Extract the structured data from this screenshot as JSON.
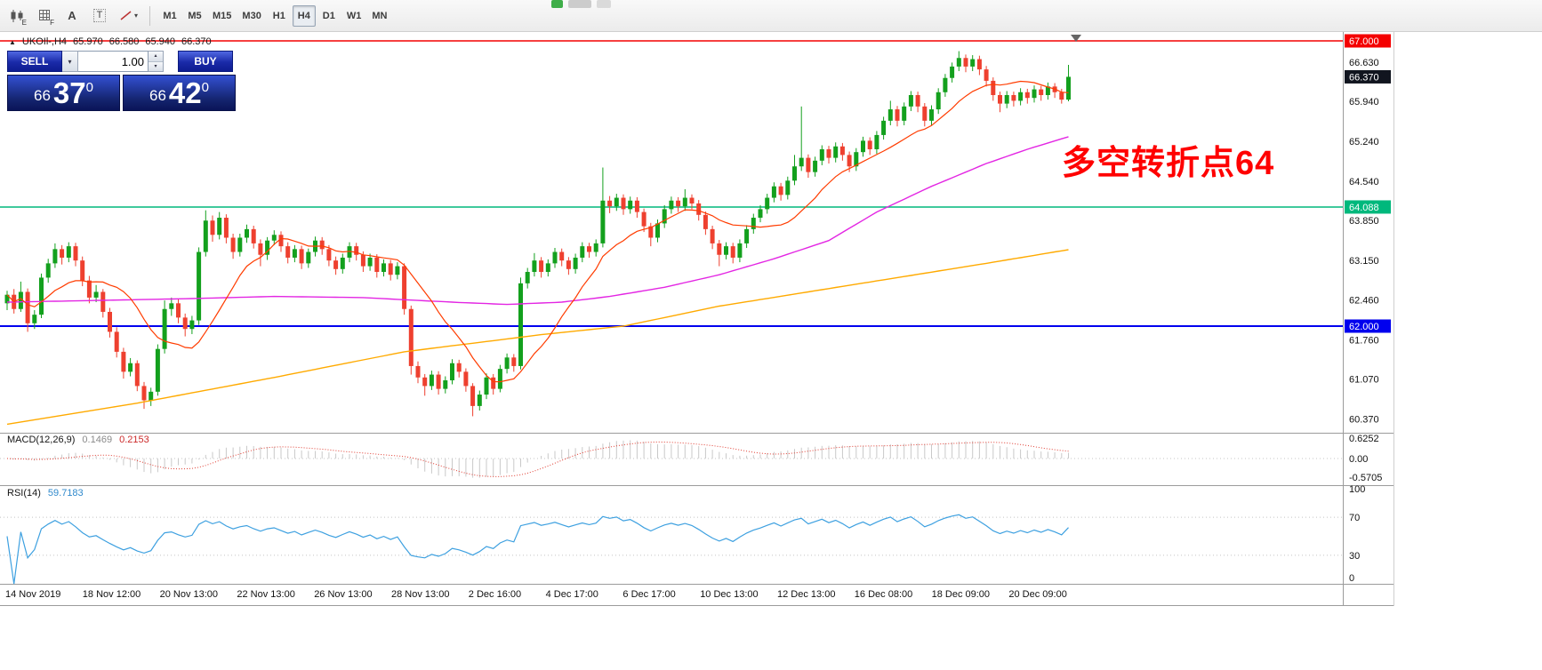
{
  "toolbar": {
    "icons": [
      {
        "name": "chart-template-button",
        "kind": "candles",
        "badge": "E"
      },
      {
        "name": "grid-button",
        "kind": "grid",
        "badge": "F"
      },
      {
        "name": "text-label-button",
        "kind": "glyph",
        "glyph": "A"
      },
      {
        "name": "textbox-button",
        "kind": "boxglyph",
        "glyph": "T"
      },
      {
        "name": "draw-tools-button",
        "kind": "line"
      }
    ],
    "timeframes": [
      "M1",
      "M5",
      "M15",
      "M30",
      "H1",
      "H4",
      "D1",
      "W1",
      "MN"
    ],
    "active_timeframe": "H4"
  },
  "chart": {
    "header": {
      "symbol_period": "UKOIl-,H4",
      "open": "65.970",
      "high": "66.580",
      "low": "65.940",
      "close": "66.370"
    },
    "annotation": {
      "text": "多空转折点64",
      "color": "#ff0000"
    },
    "price_axis": [
      {
        "text": "67.000",
        "price": 67.0,
        "style": "red"
      },
      {
        "text": "66.630",
        "price": 66.63,
        "style": "plain"
      },
      {
        "text": "66.370",
        "price": 66.37,
        "style": "dark"
      },
      {
        "text": "65.940",
        "price": 65.94,
        "style": "plain"
      },
      {
        "text": "65.240",
        "price": 65.24,
        "style": "plain"
      },
      {
        "text": "64.540",
        "price": 64.54,
        "style": "plain"
      },
      {
        "text": "64.088",
        "price": 64.088,
        "style": "green"
      },
      {
        "text": "63.850",
        "price": 63.85,
        "style": "plain"
      },
      {
        "text": "63.150",
        "price": 63.15,
        "style": "plain"
      },
      {
        "text": "62.460",
        "price": 62.46,
        "style": "plain"
      },
      {
        "text": "62.000",
        "price": 62.0,
        "style": "blue"
      },
      {
        "text": "61.760",
        "price": 61.76,
        "style": "plain"
      },
      {
        "text": "61.070",
        "price": 61.07,
        "style": "plain"
      },
      {
        "text": "60.370",
        "price": 60.37,
        "style": "plain"
      }
    ],
    "time_axis": [
      "14 Nov 2019",
      "18 Nov 12:00",
      "20 Nov 13:00",
      "22 Nov 13:00",
      "26 Nov 13:00",
      "28 Nov 13:00",
      "2 Dec 16:00",
      "4 Dec 17:00",
      "6 Dec 17:00",
      "10 Dec 13:00",
      "12 Dec 13:00",
      "16 Dec 08:00",
      "18 Dec 09:00",
      "20 Dec 09:00"
    ]
  },
  "trade_panel": {
    "sell_label": "SELL",
    "buy_label": "BUY",
    "volume": "1.00",
    "sell_big": "66",
    "sell_pips": "37",
    "sell_sup": "0",
    "buy_big": "66",
    "buy_pips": "42",
    "buy_sup": "0"
  },
  "indicators": {
    "macd": {
      "label": "MACD(12,26,9)",
      "value_main": "0.1469",
      "value_signal": "0.2153",
      "axis": [
        "0.6252",
        "0.00",
        "-0.5705"
      ]
    },
    "rsi": {
      "label": "RSI(14)",
      "value": "59.7183",
      "axis": [
        "100",
        "70",
        "30",
        "0"
      ]
    }
  },
  "chart_data": {
    "type": "candlestick",
    "symbol": "UKOIL",
    "period": "H4",
    "price_range": [
      60.0,
      67.1
    ],
    "colors": {
      "up": "#13a01d",
      "down": "#ee402f"
    },
    "hlines": [
      {
        "price": 67.0,
        "color": "#f40000",
        "width": 1.5,
        "label": "67.000"
      },
      {
        "price": 64.088,
        "color": "#00b87c",
        "width": 1.5,
        "label": "64.088"
      },
      {
        "price": 62.0,
        "color": "#0000ee",
        "width": 2,
        "label": "62.000"
      }
    ],
    "ma": {
      "fast_period": 13,
      "fast_color": "#ff3c00",
      "mid_color": "#e326e3",
      "slow_color": "#ffaa00",
      "mid_anchors": [
        [
          0,
          62.42
        ],
        [
          13,
          62.45
        ],
        [
          26,
          62.48
        ],
        [
          39,
          62.52
        ],
        [
          52,
          62.5
        ],
        [
          65,
          62.42
        ],
        [
          73,
          62.38
        ],
        [
          81,
          62.42
        ],
        [
          88,
          62.52
        ],
        [
          96,
          62.68
        ],
        [
          104,
          62.9
        ],
        [
          112,
          63.18
        ],
        [
          120,
          63.5
        ],
        [
          127,
          64.0
        ],
        [
          135,
          64.45
        ],
        [
          143,
          64.85
        ],
        [
          149,
          65.1
        ],
        [
          155,
          65.32
        ]
      ],
      "slow_anchors": [
        [
          0,
          60.28
        ],
        [
          19,
          60.65
        ],
        [
          39,
          61.1
        ],
        [
          58,
          61.55
        ],
        [
          78,
          61.85
        ],
        [
          90,
          62.0
        ],
        [
          104,
          62.35
        ],
        [
          117,
          62.6
        ],
        [
          130,
          62.85
        ],
        [
          143,
          63.1
        ],
        [
          155,
          63.34
        ]
      ]
    },
    "ohlc": [
      [
        62.4,
        62.62,
        62.28,
        62.55
      ],
      [
        62.55,
        62.65,
        62.22,
        62.3
      ],
      [
        62.3,
        62.78,
        62.25,
        62.6
      ],
      [
        62.6,
        62.66,
        61.9,
        62.05
      ],
      [
        62.05,
        62.28,
        61.95,
        62.2
      ],
      [
        62.2,
        62.92,
        62.14,
        62.85
      ],
      [
        62.85,
        63.18,
        62.76,
        63.1
      ],
      [
        63.1,
        63.45,
        63.02,
        63.35
      ],
      [
        63.35,
        63.42,
        63.08,
        63.2
      ],
      [
        63.2,
        63.47,
        63.12,
        63.4
      ],
      [
        63.4,
        63.46,
        63.05,
        63.15
      ],
      [
        63.15,
        63.22,
        62.7,
        62.8
      ],
      [
        62.8,
        62.88,
        62.4,
        62.5
      ],
      [
        62.5,
        62.72,
        62.42,
        62.6
      ],
      [
        62.6,
        62.65,
        62.15,
        62.25
      ],
      [
        62.25,
        62.32,
        61.8,
        61.9
      ],
      [
        61.9,
        61.98,
        61.45,
        61.55
      ],
      [
        61.55,
        61.62,
        61.08,
        61.2
      ],
      [
        61.2,
        61.44,
        61.12,
        61.35
      ],
      [
        61.35,
        61.4,
        60.86,
        60.95
      ],
      [
        60.95,
        61.02,
        60.55,
        60.7
      ],
      [
        60.7,
        60.92,
        60.6,
        60.85
      ],
      [
        60.85,
        61.68,
        60.78,
        61.6
      ],
      [
        61.6,
        62.45,
        61.52,
        62.3
      ],
      [
        62.3,
        62.5,
        62.18,
        62.4
      ],
      [
        62.4,
        62.47,
        62.05,
        62.15
      ],
      [
        62.15,
        62.22,
        61.82,
        61.95
      ],
      [
        61.95,
        62.18,
        61.86,
        62.1
      ],
      [
        62.1,
        63.38,
        62.02,
        63.3
      ],
      [
        63.3,
        64.03,
        63.22,
        63.85
      ],
      [
        63.85,
        63.94,
        63.48,
        63.6
      ],
      [
        63.6,
        64.0,
        63.52,
        63.9
      ],
      [
        63.9,
        63.96,
        63.45,
        63.55
      ],
      [
        63.55,
        63.62,
        63.18,
        63.3
      ],
      [
        63.3,
        63.62,
        63.22,
        63.55
      ],
      [
        63.55,
        63.78,
        63.46,
        63.7
      ],
      [
        63.7,
        63.76,
        63.36,
        63.45
      ],
      [
        63.45,
        63.52,
        63.05,
        63.25
      ],
      [
        63.25,
        63.56,
        63.16,
        63.5
      ],
      [
        63.5,
        63.68,
        63.42,
        63.6
      ],
      [
        63.6,
        63.66,
        63.3,
        63.4
      ],
      [
        63.4,
        63.47,
        63.1,
        63.2
      ],
      [
        63.2,
        63.42,
        63.12,
        63.35
      ],
      [
        63.35,
        63.41,
        63.0,
        63.1
      ],
      [
        63.1,
        63.36,
        63.02,
        63.3
      ],
      [
        63.3,
        63.57,
        63.22,
        63.5
      ],
      [
        63.5,
        63.56,
        63.25,
        63.35
      ],
      [
        63.35,
        63.42,
        63.05,
        63.15
      ],
      [
        63.15,
        63.22,
        62.9,
        63.0
      ],
      [
        63.0,
        63.27,
        62.92,
        63.2
      ],
      [
        63.2,
        63.47,
        63.12,
        63.4
      ],
      [
        63.4,
        63.46,
        63.15,
        63.25
      ],
      [
        63.25,
        63.31,
        62.95,
        63.05
      ],
      [
        63.05,
        63.27,
        62.97,
        63.2
      ],
      [
        63.2,
        63.26,
        62.85,
        62.95
      ],
      [
        62.95,
        63.17,
        62.87,
        63.1
      ],
      [
        63.1,
        63.16,
        62.8,
        62.9
      ],
      [
        62.9,
        63.12,
        62.82,
        63.05
      ],
      [
        63.05,
        63.1,
        62.2,
        62.3
      ],
      [
        62.3,
        62.36,
        61.15,
        61.3
      ],
      [
        61.3,
        61.38,
        61.0,
        61.1
      ],
      [
        61.1,
        61.16,
        60.78,
        60.95
      ],
      [
        60.95,
        61.22,
        60.88,
        61.15
      ],
      [
        61.15,
        61.21,
        60.8,
        60.9
      ],
      [
        60.9,
        61.12,
        60.82,
        61.05
      ],
      [
        61.05,
        61.42,
        60.98,
        61.35
      ],
      [
        61.35,
        61.41,
        61.1,
        61.2
      ],
      [
        61.2,
        61.26,
        60.85,
        60.95
      ],
      [
        60.95,
        61.0,
        60.42,
        60.6
      ],
      [
        60.6,
        60.87,
        60.52,
        60.8
      ],
      [
        60.8,
        61.17,
        60.72,
        61.1
      ],
      [
        61.1,
        61.16,
        60.8,
        60.9
      ],
      [
        60.9,
        61.32,
        60.84,
        61.25
      ],
      [
        61.25,
        61.52,
        61.17,
        61.45
      ],
      [
        61.45,
        61.51,
        61.2,
        61.3
      ],
      [
        61.3,
        62.85,
        61.24,
        62.75
      ],
      [
        62.75,
        63.02,
        62.66,
        62.95
      ],
      [
        62.95,
        63.28,
        62.87,
        63.15
      ],
      [
        63.15,
        63.21,
        62.85,
        62.95
      ],
      [
        62.95,
        63.17,
        62.87,
        63.1
      ],
      [
        63.1,
        63.37,
        63.02,
        63.3
      ],
      [
        63.3,
        63.36,
        63.05,
        63.15
      ],
      [
        63.15,
        63.21,
        62.9,
        63.0
      ],
      [
        63.0,
        63.27,
        62.92,
        63.2
      ],
      [
        63.2,
        63.47,
        63.12,
        63.4
      ],
      [
        63.4,
        63.46,
        63.2,
        63.3
      ],
      [
        63.3,
        63.52,
        63.22,
        63.45
      ],
      [
        63.45,
        64.78,
        63.38,
        64.2
      ],
      [
        64.2,
        64.28,
        63.98,
        64.1
      ],
      [
        64.1,
        64.32,
        64.02,
        64.25
      ],
      [
        64.25,
        64.31,
        63.95,
        64.05
      ],
      [
        64.05,
        64.27,
        63.97,
        64.2
      ],
      [
        64.2,
        64.26,
        63.9,
        64.0
      ],
      [
        64.0,
        64.06,
        63.65,
        63.75
      ],
      [
        63.75,
        63.81,
        63.4,
        63.55
      ],
      [
        63.55,
        63.87,
        63.47,
        63.8
      ],
      [
        63.8,
        64.12,
        63.72,
        64.05
      ],
      [
        64.05,
        64.27,
        63.97,
        64.2
      ],
      [
        64.2,
        64.26,
        64.0,
        64.1
      ],
      [
        64.1,
        64.4,
        64.02,
        64.25
      ],
      [
        64.25,
        64.31,
        64.05,
        64.15
      ],
      [
        64.15,
        64.21,
        63.85,
        63.95
      ],
      [
        63.95,
        64.01,
        63.6,
        63.7
      ],
      [
        63.7,
        63.76,
        63.35,
        63.45
      ],
      [
        63.45,
        63.51,
        63.05,
        63.25
      ],
      [
        63.25,
        63.47,
        63.17,
        63.4
      ],
      [
        63.4,
        63.46,
        63.1,
        63.2
      ],
      [
        63.2,
        63.52,
        63.12,
        63.45
      ],
      [
        63.45,
        63.77,
        63.37,
        63.7
      ],
      [
        63.7,
        63.97,
        63.62,
        63.9
      ],
      [
        63.9,
        64.12,
        63.82,
        64.05
      ],
      [
        64.05,
        64.32,
        63.97,
        64.25
      ],
      [
        64.25,
        64.52,
        64.17,
        64.45
      ],
      [
        64.45,
        64.51,
        64.2,
        64.3
      ],
      [
        64.3,
        64.62,
        64.22,
        64.55
      ],
      [
        64.55,
        65.0,
        64.47,
        64.8
      ],
      [
        64.8,
        65.85,
        64.72,
        64.95
      ],
      [
        64.95,
        65.01,
        64.6,
        64.7
      ],
      [
        64.7,
        64.97,
        64.62,
        64.9
      ],
      [
        64.9,
        65.17,
        64.82,
        65.1
      ],
      [
        65.1,
        65.16,
        64.85,
        64.95
      ],
      [
        64.95,
        65.22,
        64.87,
        65.15
      ],
      [
        65.15,
        65.21,
        64.9,
        65.0
      ],
      [
        65.0,
        65.06,
        64.7,
        64.8
      ],
      [
        64.8,
        65.12,
        64.72,
        65.05
      ],
      [
        65.05,
        65.32,
        64.97,
        65.25
      ],
      [
        65.25,
        65.31,
        65.0,
        65.1
      ],
      [
        65.1,
        65.42,
        65.02,
        65.35
      ],
      [
        65.35,
        65.67,
        65.27,
        65.6
      ],
      [
        65.6,
        65.95,
        65.52,
        65.8
      ],
      [
        65.8,
        65.86,
        65.5,
        65.6
      ],
      [
        65.6,
        65.92,
        65.52,
        65.85
      ],
      [
        65.85,
        66.12,
        65.77,
        66.05
      ],
      [
        66.05,
        66.11,
        65.75,
        65.85
      ],
      [
        65.85,
        65.91,
        65.5,
        65.6
      ],
      [
        65.6,
        65.87,
        65.52,
        65.8
      ],
      [
        65.8,
        66.17,
        65.72,
        66.1
      ],
      [
        66.1,
        66.42,
        66.02,
        66.35
      ],
      [
        66.35,
        66.62,
        66.27,
        66.55
      ],
      [
        66.55,
        66.82,
        66.47,
        66.7
      ],
      [
        66.7,
        66.76,
        66.45,
        66.55
      ],
      [
        66.55,
        66.75,
        66.47,
        66.68
      ],
      [
        66.68,
        66.74,
        66.4,
        66.5
      ],
      [
        66.5,
        66.56,
        66.2,
        66.3
      ],
      [
        66.3,
        66.36,
        65.95,
        66.05
      ],
      [
        66.05,
        66.11,
        65.75,
        65.9
      ],
      [
        65.9,
        66.12,
        65.82,
        66.05
      ],
      [
        66.05,
        66.11,
        65.85,
        65.95
      ],
      [
        65.95,
        66.17,
        65.87,
        66.1
      ],
      [
        66.1,
        66.16,
        65.9,
        66.0
      ],
      [
        66.0,
        66.22,
        65.92,
        66.15
      ],
      [
        66.15,
        66.21,
        65.95,
        66.05
      ],
      [
        66.05,
        66.27,
        65.97,
        66.2
      ],
      [
        66.2,
        66.26,
        66.0,
        66.1
      ],
      [
        66.1,
        66.16,
        65.9,
        65.97
      ],
      [
        65.97,
        66.58,
        65.94,
        66.37
      ]
    ]
  }
}
